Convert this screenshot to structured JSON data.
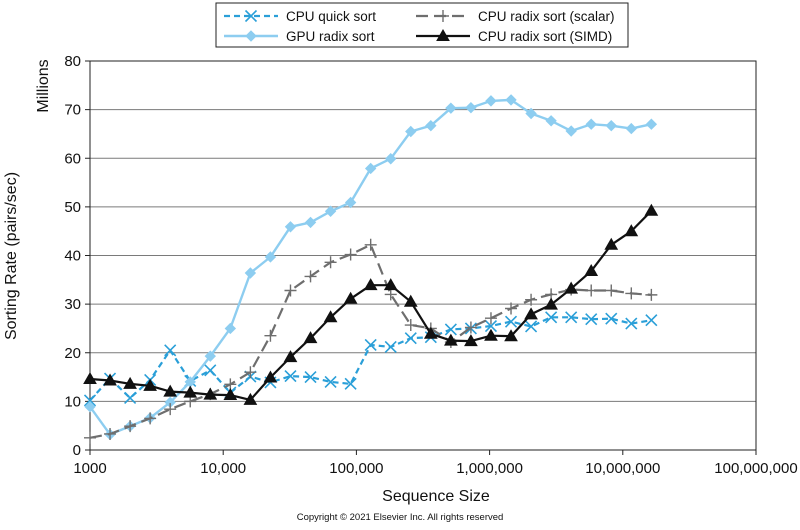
{
  "chart_data": {
    "type": "line",
    "xlabel": "Sequence Size",
    "ylabel": "Sorting Rate (pairs/sec)",
    "yunit_label": "Millions",
    "xscale": "log",
    "xlim": [
      1000,
      100000000
    ],
    "ylim": [
      0,
      80
    ],
    "xticks": [
      1000,
      10000,
      100000,
      1000000,
      10000000,
      100000000
    ],
    "xtick_labels": [
      "1000",
      "10,000",
      "100,000",
      "1,000,000",
      "10,000,000",
      "100,000,000"
    ],
    "yticks": [
      0,
      10,
      20,
      30,
      40,
      50,
      60,
      70,
      80
    ],
    "ytick_labels": [
      "0",
      "10",
      "20",
      "30",
      "40",
      "50",
      "60",
      "70",
      "80"
    ],
    "grid": "horizontal",
    "legend_position": "top-center",
    "series": [
      {
        "name": "CPU quick sort",
        "color": "#2a9fd8",
        "style": "dashed",
        "marker": "x",
        "x": [
          1000,
          1414,
          2000,
          2828,
          4000,
          5657,
          8000,
          11314,
          16000,
          22627,
          32000,
          45255,
          64000,
          90510,
          128000,
          181019,
          256000,
          362039,
          512000,
          724077,
          1024000,
          1448155,
          2048000,
          2896309,
          4096000,
          5792618,
          8192000,
          11585237,
          16384000
        ],
        "y": [
          10.2,
          14.7,
          10.7,
          14.4,
          20.5,
          14.2,
          16.4,
          11.8,
          15.1,
          13.9,
          15.2,
          15.0,
          14.0,
          13.6,
          21.6,
          21.2,
          23.0,
          23.2,
          24.8,
          25.0,
          25.5,
          26.4,
          25.4,
          27.3,
          27.3,
          26.9,
          27.0,
          26.0,
          26.7
        ]
      },
      {
        "name": "GPU radix sort",
        "color": "#8dcdf0",
        "style": "solid",
        "marker": "diamond",
        "x": [
          1000,
          1414,
          2000,
          2828,
          4000,
          5657,
          8000,
          11314,
          16000,
          22627,
          32000,
          45255,
          64000,
          90510,
          128000,
          181019,
          256000,
          362039,
          512000,
          724077,
          1024000,
          1448155,
          2048000,
          2896309,
          4096000,
          5792618,
          8192000,
          11585237,
          16384000
        ],
        "y": [
          8.9,
          3.2,
          4.9,
          6.6,
          9.8,
          14.0,
          19.3,
          25.0,
          36.4,
          39.7,
          45.9,
          46.8,
          49.1,
          50.9,
          57.9,
          59.9,
          65.5,
          66.7,
          70.3,
          70.4,
          71.8,
          72.0,
          69.2,
          67.7,
          65.6,
          67.0,
          66.7,
          66.1,
          67.0
        ]
      },
      {
        "name": "CPU radix sort (scalar)",
        "color": "#6e6e6e",
        "style": "dashed",
        "marker": "plus",
        "x": [
          1000,
          1414,
          2000,
          2828,
          4000,
          5657,
          8000,
          11314,
          16000,
          22627,
          32000,
          45255,
          64000,
          90510,
          128000,
          181019,
          256000,
          362039,
          512000,
          724077,
          1024000,
          1448155,
          2048000,
          2896309,
          4096000,
          5792618,
          8192000,
          11585237,
          16384000
        ],
        "y": [
          2.5,
          3.3,
          4.9,
          6.5,
          8.4,
          10.0,
          11.5,
          13.5,
          16.0,
          23.5,
          32.8,
          35.7,
          38.6,
          40.2,
          42.2,
          32.0,
          25.7,
          25.0,
          22.2,
          25.2,
          27.1,
          29.1,
          30.9,
          32.0,
          33.0,
          32.8,
          32.8,
          32.2,
          31.9
        ]
      },
      {
        "name": "CPU radix sort (SIMD)",
        "color": "#111111",
        "style": "solid",
        "marker": "triangle",
        "x": [
          1000,
          1414,
          2000,
          2828,
          4000,
          5657,
          8000,
          11314,
          16000,
          22627,
          32000,
          45255,
          64000,
          90510,
          128000,
          181019,
          256000,
          362039,
          512000,
          724077,
          1024000,
          1448155,
          2048000,
          2896309,
          4096000,
          5792618,
          8192000,
          11585237,
          16384000
        ],
        "y": [
          14.6,
          14.3,
          13.6,
          13.2,
          12.0,
          11.8,
          11.4,
          11.3,
          10.3,
          14.9,
          19.1,
          23.0,
          27.3,
          31.1,
          33.9,
          33.9,
          30.5,
          23.9,
          22.5,
          22.4,
          23.5,
          23.4,
          27.9,
          29.9,
          33.2,
          36.8,
          42.2,
          45.0,
          49.2
        ]
      }
    ]
  },
  "copyright": "Copyright © 2021 Elsevier Inc. All rights reserved"
}
